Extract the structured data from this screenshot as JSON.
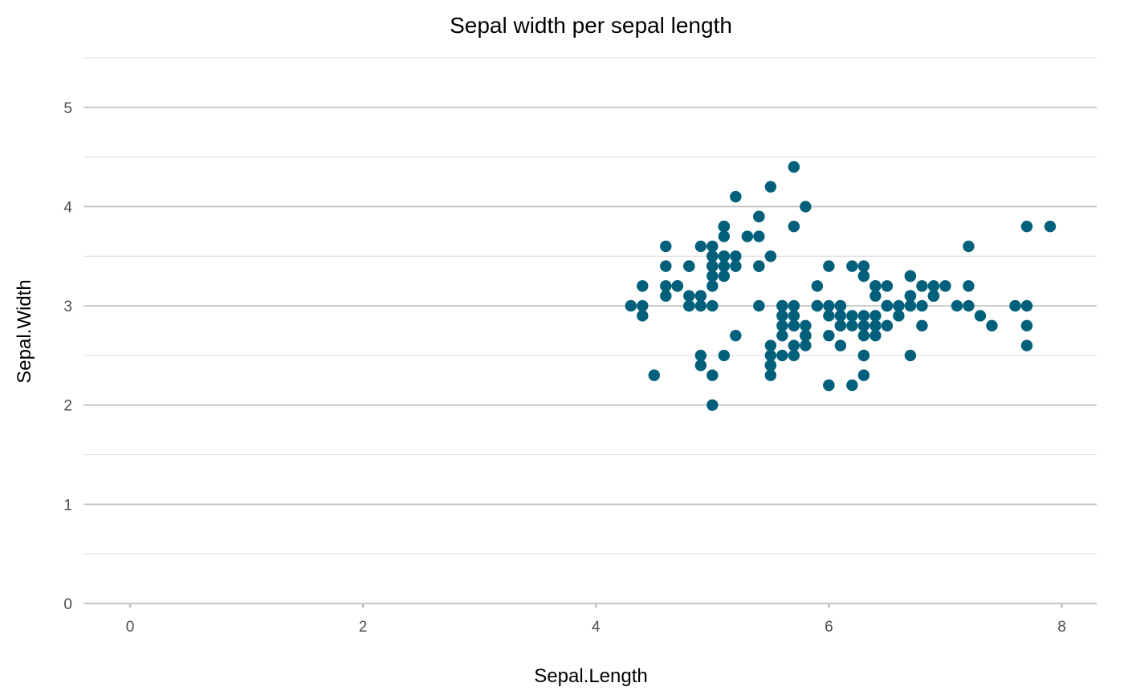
{
  "chart_data": {
    "type": "scatter",
    "title": "Sepal width per sepal length",
    "xlabel": "Sepal.Length",
    "ylabel": "Sepal.Width",
    "xlim": [
      -0.4,
      8.3
    ],
    "ylim": [
      0,
      5.5
    ],
    "x_ticks": [
      0,
      2,
      4,
      6,
      8
    ],
    "y_ticks": [
      0,
      1,
      2,
      3,
      4,
      5
    ],
    "grid": true,
    "point_color": "#005f7a",
    "series": [
      {
        "points": [
          [
            5.1,
            3.5
          ],
          [
            4.9,
            3.0
          ],
          [
            4.7,
            3.2
          ],
          [
            4.6,
            3.1
          ],
          [
            5.0,
            3.6
          ],
          [
            5.4,
            3.9
          ],
          [
            4.6,
            3.4
          ],
          [
            5.0,
            3.4
          ],
          [
            4.4,
            2.9
          ],
          [
            4.9,
            3.1
          ],
          [
            5.4,
            3.7
          ],
          [
            4.8,
            3.4
          ],
          [
            4.8,
            3.0
          ],
          [
            4.3,
            3.0
          ],
          [
            5.8,
            4.0
          ],
          [
            5.7,
            4.4
          ],
          [
            5.4,
            3.9
          ],
          [
            5.1,
            3.5
          ],
          [
            5.7,
            3.8
          ],
          [
            5.1,
            3.8
          ],
          [
            5.4,
            3.4
          ],
          [
            5.1,
            3.7
          ],
          [
            4.6,
            3.6
          ],
          [
            5.1,
            3.3
          ],
          [
            4.8,
            3.4
          ],
          [
            5.0,
            3.0
          ],
          [
            5.0,
            3.4
          ],
          [
            5.2,
            3.5
          ],
          [
            5.2,
            3.4
          ],
          [
            4.7,
            3.2
          ],
          [
            4.8,
            3.1
          ],
          [
            5.4,
            3.4
          ],
          [
            5.2,
            4.1
          ],
          [
            5.5,
            4.2
          ],
          [
            4.9,
            3.1
          ],
          [
            5.0,
            3.2
          ],
          [
            5.5,
            3.5
          ],
          [
            4.9,
            3.6
          ],
          [
            4.4,
            3.0
          ],
          [
            5.1,
            3.4
          ],
          [
            5.0,
            3.5
          ],
          [
            4.5,
            2.3
          ],
          [
            4.4,
            3.2
          ],
          [
            5.0,
            3.5
          ],
          [
            5.1,
            3.8
          ],
          [
            4.8,
            3.0
          ],
          [
            5.1,
            3.8
          ],
          [
            4.6,
            3.2
          ],
          [
            5.3,
            3.7
          ],
          [
            5.0,
            3.3
          ],
          [
            7.0,
            3.2
          ],
          [
            6.4,
            3.2
          ],
          [
            6.9,
            3.1
          ],
          [
            5.5,
            2.3
          ],
          [
            6.5,
            2.8
          ],
          [
            5.7,
            2.8
          ],
          [
            6.3,
            3.3
          ],
          [
            4.9,
            2.4
          ],
          [
            6.6,
            2.9
          ],
          [
            5.2,
            2.7
          ],
          [
            5.0,
            2.0
          ],
          [
            5.9,
            3.0
          ],
          [
            6.0,
            2.2
          ],
          [
            6.1,
            2.9
          ],
          [
            5.6,
            2.9
          ],
          [
            6.7,
            3.1
          ],
          [
            5.6,
            3.0
          ],
          [
            5.8,
            2.7
          ],
          [
            6.2,
            2.2
          ],
          [
            5.6,
            2.5
          ],
          [
            5.9,
            3.2
          ],
          [
            6.1,
            2.8
          ],
          [
            6.3,
            2.5
          ],
          [
            6.1,
            2.8
          ],
          [
            6.4,
            2.9
          ],
          [
            6.6,
            3.0
          ],
          [
            6.8,
            2.8
          ],
          [
            6.7,
            3.0
          ],
          [
            6.0,
            2.9
          ],
          [
            5.7,
            2.6
          ],
          [
            5.5,
            2.4
          ],
          [
            5.5,
            2.4
          ],
          [
            5.8,
            2.7
          ],
          [
            6.0,
            2.7
          ],
          [
            5.4,
            3.0
          ],
          [
            6.0,
            3.4
          ],
          [
            6.7,
            3.1
          ],
          [
            6.3,
            2.3
          ],
          [
            5.6,
            3.0
          ],
          [
            5.5,
            2.5
          ],
          [
            5.5,
            2.6
          ],
          [
            6.1,
            3.0
          ],
          [
            5.8,
            2.6
          ],
          [
            5.0,
            2.3
          ],
          [
            5.6,
            2.7
          ],
          [
            5.7,
            3.0
          ],
          [
            5.7,
            2.9
          ],
          [
            6.2,
            2.9
          ],
          [
            5.1,
            2.5
          ],
          [
            5.7,
            2.8
          ],
          [
            6.3,
            3.3
          ],
          [
            5.8,
            2.7
          ],
          [
            7.1,
            3.0
          ],
          [
            6.3,
            2.9
          ],
          [
            6.5,
            3.0
          ],
          [
            7.6,
            3.0
          ],
          [
            4.9,
            2.5
          ],
          [
            7.3,
            2.9
          ],
          [
            6.7,
            2.5
          ],
          [
            7.2,
            3.6
          ],
          [
            6.5,
            3.2
          ],
          [
            6.4,
            2.7
          ],
          [
            6.8,
            3.0
          ],
          [
            5.7,
            2.5
          ],
          [
            5.8,
            2.8
          ],
          [
            6.4,
            3.2
          ],
          [
            6.5,
            3.0
          ],
          [
            7.7,
            3.8
          ],
          [
            7.7,
            2.6
          ],
          [
            6.0,
            2.2
          ],
          [
            6.9,
            3.2
          ],
          [
            5.6,
            2.8
          ],
          [
            7.7,
            2.8
          ],
          [
            6.3,
            2.7
          ],
          [
            6.7,
            3.3
          ],
          [
            7.2,
            3.2
          ],
          [
            6.2,
            2.8
          ],
          [
            6.1,
            3.0
          ],
          [
            6.4,
            2.8
          ],
          [
            7.2,
            3.0
          ],
          [
            7.4,
            2.8
          ],
          [
            7.9,
            3.8
          ],
          [
            6.4,
            2.8
          ],
          [
            6.3,
            2.8
          ],
          [
            6.1,
            2.6
          ],
          [
            7.7,
            3.0
          ],
          [
            6.3,
            3.4
          ],
          [
            6.4,
            3.1
          ],
          [
            6.0,
            3.0
          ],
          [
            6.9,
            3.1
          ],
          [
            6.7,
            3.1
          ],
          [
            6.9,
            3.1
          ],
          [
            5.8,
            2.7
          ],
          [
            6.8,
            3.2
          ],
          [
            6.7,
            3.3
          ],
          [
            6.7,
            3.0
          ],
          [
            6.3,
            2.5
          ],
          [
            6.5,
            3.0
          ],
          [
            6.2,
            3.4
          ],
          [
            5.9,
            3.0
          ]
        ]
      }
    ]
  }
}
